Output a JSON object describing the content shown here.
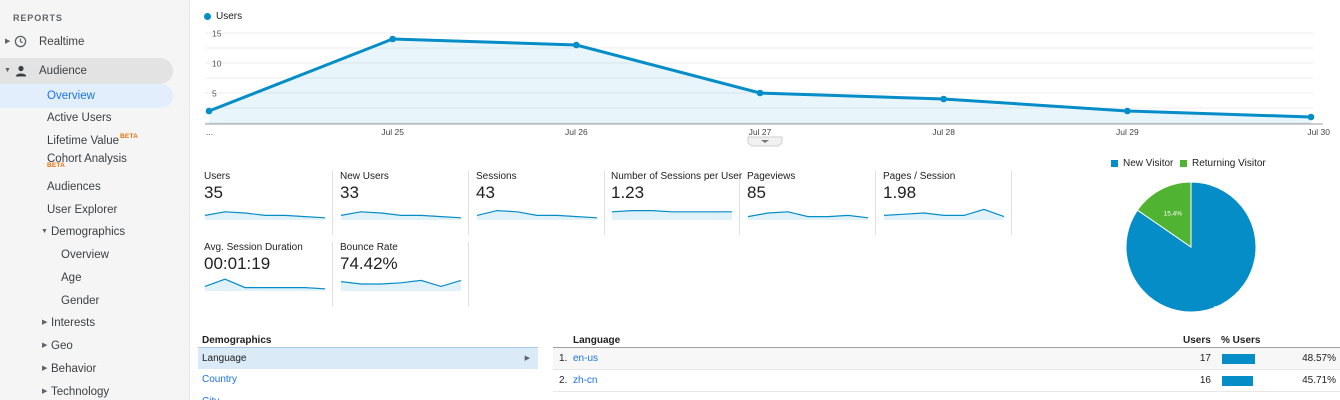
{
  "sidebar": {
    "header": "REPORTS",
    "realtime": "Realtime",
    "audience": "Audience",
    "items": {
      "overview": "Overview",
      "active_users": "Active Users",
      "lifetime_value": "Lifetime Value",
      "lifetime_beta": "BETA",
      "cohort_analysis": "Cohort Analysis",
      "cohort_beta": "BETA",
      "audiences": "Audiences",
      "user_explorer": "User Explorer",
      "demographics": "Demographics",
      "demo_overview": "Overview",
      "age": "Age",
      "gender": "Gender",
      "interests": "Interests",
      "geo": "Geo",
      "behavior": "Behavior",
      "technology": "Technology"
    }
  },
  "chart_data": {
    "type": "line",
    "series": [
      {
        "name": "Users",
        "values": [
          2,
          14,
          13,
          5,
          4,
          2,
          1
        ]
      }
    ],
    "categories": [
      "...",
      "Jul 25",
      "Jul 26",
      "Jul 27",
      "Jul 28",
      "Jul 29",
      "Jul 30"
    ],
    "yticks": [
      5,
      10,
      15
    ],
    "ylim": [
      0,
      16
    ],
    "color": "#058dc7",
    "grid": true
  },
  "metrics": [
    {
      "label": "Users",
      "value": "35",
      "spark": [
        3,
        6,
        5,
        3,
        3,
        2,
        1
      ]
    },
    {
      "label": "New Users",
      "value": "33",
      "spark": [
        3,
        6,
        5,
        3,
        3,
        2,
        1
      ]
    },
    {
      "label": "Sessions",
      "value": "43",
      "spark": [
        3,
        7,
        6,
        3,
        3,
        2,
        1
      ]
    },
    {
      "label": "Number of Sessions per User",
      "value": "1.23",
      "spark": [
        6,
        7,
        7,
        6,
        6,
        6,
        6
      ]
    },
    {
      "label": "Pageviews",
      "value": "85",
      "spark": [
        2,
        5,
        6,
        2,
        2,
        3,
        1
      ]
    },
    {
      "label": "Pages / Session",
      "value": "1.98",
      "spark": [
        3,
        4,
        5,
        3,
        3,
        8,
        2
      ]
    },
    {
      "label": "Avg. Session Duration",
      "value": "00:01:19",
      "spark": [
        3,
        9,
        2,
        2,
        2,
        2,
        1
      ]
    },
    {
      "label": "Bounce Rate",
      "value": "74.42%",
      "spark": [
        7,
        5,
        5,
        6,
        8,
        3,
        8
      ]
    }
  ],
  "pie": {
    "type": "pie",
    "legend": [
      {
        "name": "New Visitor",
        "color": "#058dc7"
      },
      {
        "name": "Returning Visitor",
        "color": "#50b432"
      }
    ],
    "values": [
      84.6,
      15.4
    ],
    "labels": [
      "84.6%",
      "15.4%"
    ]
  },
  "demographics": {
    "title": "Demographics",
    "selected": "Language",
    "country": "Country",
    "city": "City"
  },
  "table": {
    "headers": {
      "language": "Language",
      "users": "Users",
      "pct_users": "% Users"
    },
    "rows": [
      {
        "index": "1.",
        "language": "en-us",
        "users": "17",
        "pct": "48.57%",
        "share": 0.4857
      },
      {
        "index": "2.",
        "language": "zh-cn",
        "users": "16",
        "pct": "45.71%",
        "share": 0.4571
      }
    ]
  }
}
